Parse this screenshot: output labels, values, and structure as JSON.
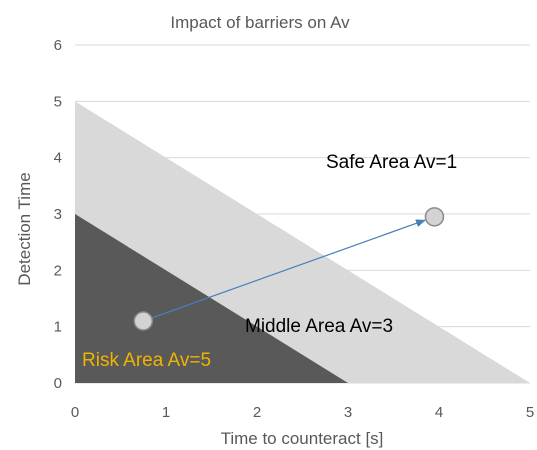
{
  "chart_data": {
    "type": "scatter",
    "title": "Impact of barriers on Av",
    "xlabel": "Time to counteract [s]",
    "ylabel": "Detection Time",
    "xlim": [
      0,
      5
    ],
    "ylim": [
      0,
      6
    ],
    "x_ticks": [
      "0",
      "1",
      "2",
      "3",
      "4",
      "5"
    ],
    "y_ticks": [
      "0",
      "1",
      "2",
      "3",
      "4",
      "5",
      "6"
    ],
    "grid": "horizontal",
    "regions": [
      {
        "label": "Safe Area Av=1",
        "color": "#d9d9d9",
        "polygon": [
          [
            0,
            0
          ],
          [
            5,
            0
          ],
          [
            0,
            5
          ]
        ]
      },
      {
        "label": "Risk Area Av=5",
        "color": "#595959",
        "label_color": "#f0b400",
        "polygon": [
          [
            0,
            0
          ],
          [
            3,
            0
          ],
          [
            0,
            3
          ]
        ]
      }
    ],
    "middle_label": "Middle Area Av=3",
    "points": [
      {
        "x": 0.75,
        "y": 1.1
      },
      {
        "x": 3.95,
        "y": 2.95
      }
    ],
    "arrow": {
      "from": 0,
      "to": 1,
      "color": "#4a7ebb"
    },
    "colors": {
      "text": "#595959",
      "annotation_dark": "#000000",
      "gridline": "#d9d9d9",
      "point_fill": "#d3d3d3",
      "point_stroke": "#8c8c8c"
    }
  }
}
